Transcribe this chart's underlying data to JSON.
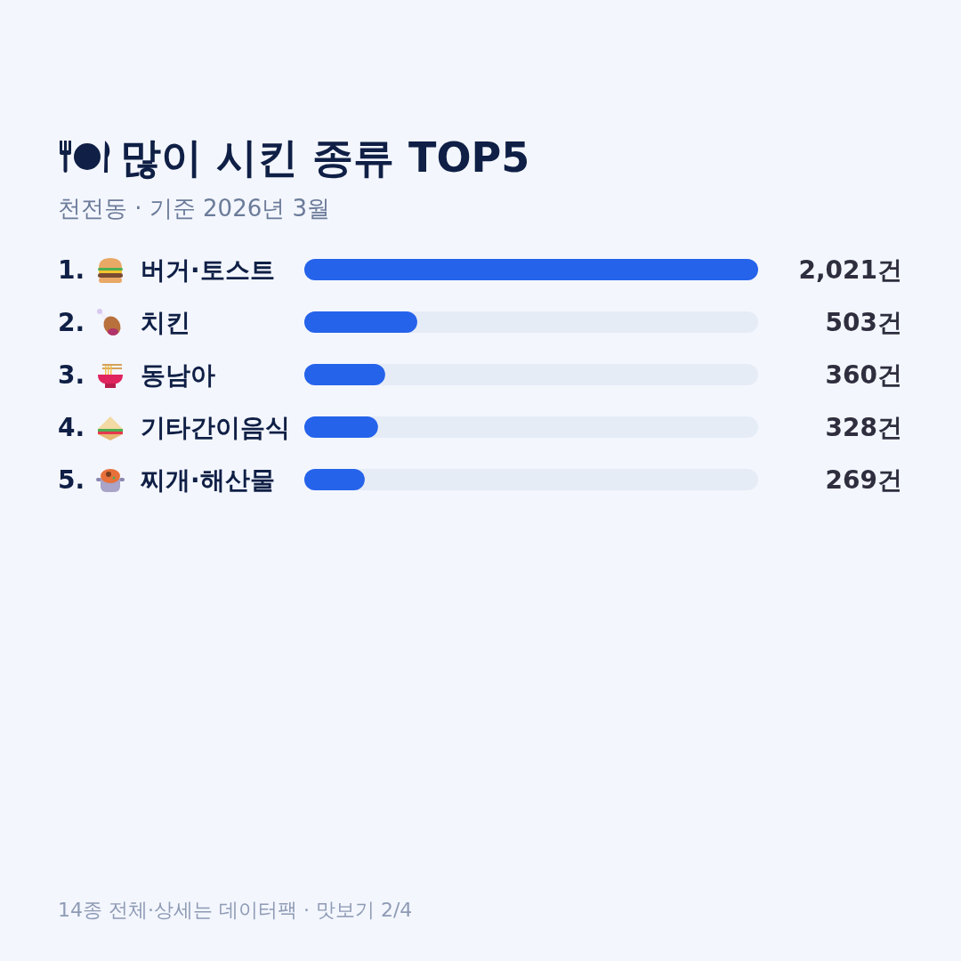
{
  "chart_data": {
    "type": "bar",
    "orientation": "horizontal",
    "title": "많이 시킨 종류 TOP5",
    "subtitle": "천전동 · 기준 2026년 3월",
    "categories": [
      "1. 버거·토스트",
      "2. 치킨",
      "3. 동남아",
      "4. 기타간이음식",
      "5. 찌개·해산물"
    ],
    "values": [
      2021,
      503,
      360,
      328,
      269
    ],
    "value_labels": [
      "2,021건",
      "503건",
      "360건",
      "328건",
      "269건"
    ],
    "color": "#2563eb",
    "annotations": [
      "14종 전체·상세는 데이터팩 · 맛보기 2/4"
    ]
  }
}
